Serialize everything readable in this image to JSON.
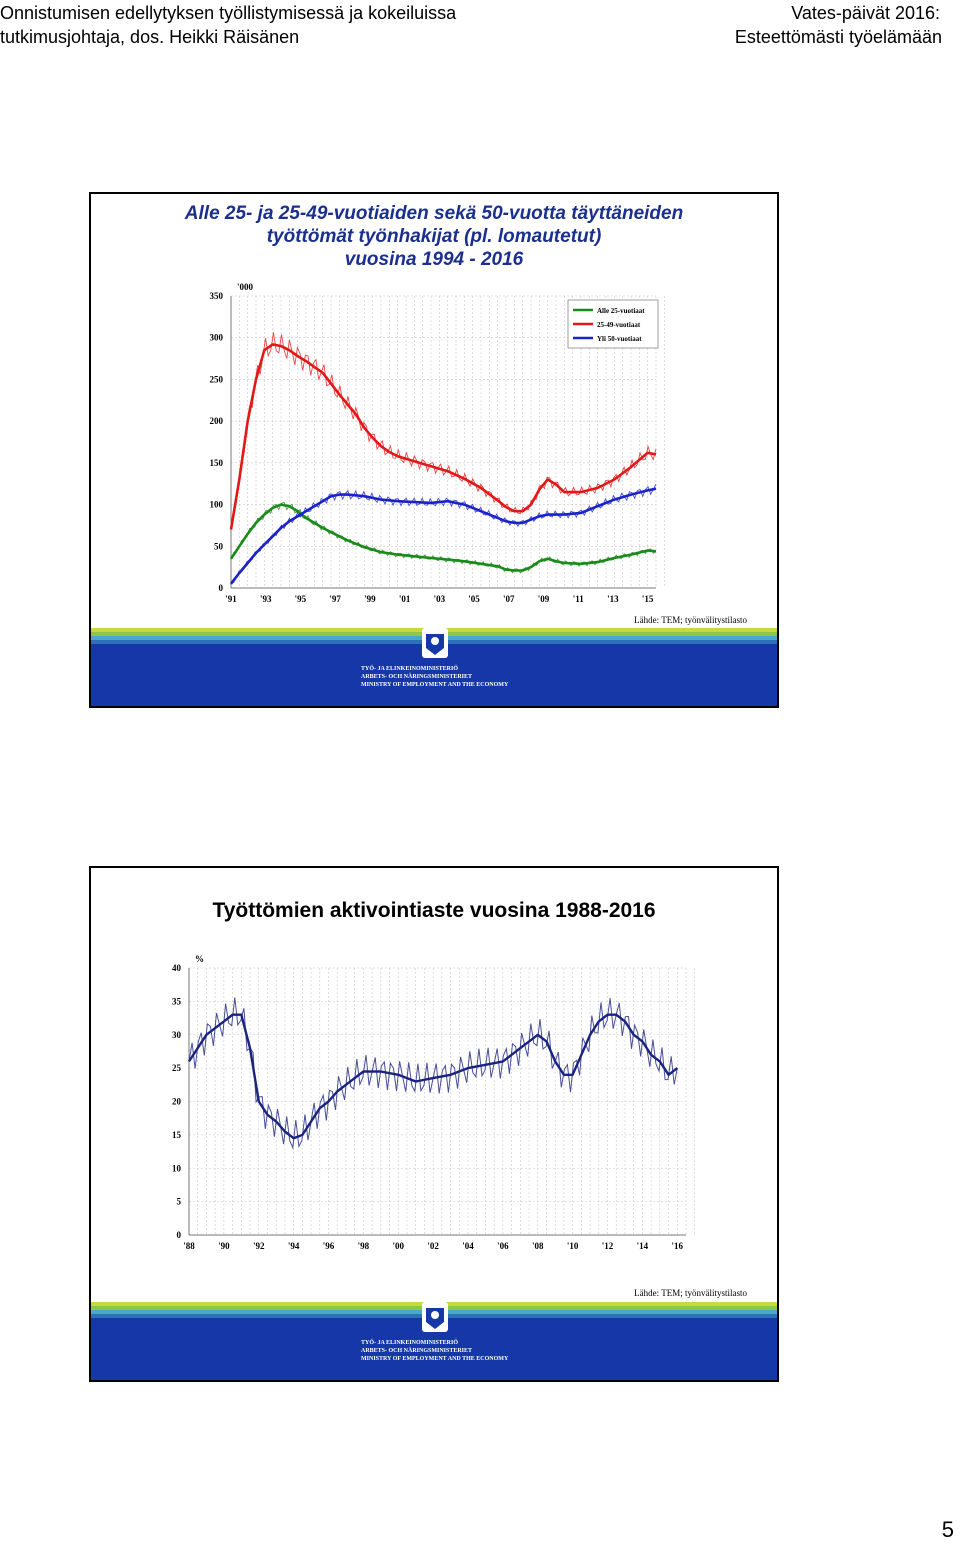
{
  "header": {
    "left_line1": "Onnistumisen edellytyksen työllistymisessä ja kokeiluissa",
    "left_line2": "tutkimusjohtaja, dos. Heikki Räisänen",
    "right_line1": "Vates-päivät 2016:",
    "right_line2": "Esteettömästi työelämään"
  },
  "slide1": {
    "title_line1": "Alle 25- ja 25-49-vuotiaiden  sekä 50-vuotta täyttäneiden",
    "title_line2": "työttömät työnhakijat (pl. lomautetut)",
    "title_line3": "vuosina 1994 - 2016",
    "source": "Lähde: TEM; työnvälitystilasto"
  },
  "slide2": {
    "title": "Työttömien aktivointiaste vuosina 1988-2016",
    "source": "Lähde: TEM; työnvälitystilasto"
  },
  "ministry": {
    "line1": "TYÖ- JA ELINKEINOMINISTERIÖ",
    "line2": "ARBETS- OCH NÄRINGSMINISTERIET",
    "line3": "MINISTRY OF EMPLOYMENT AND THE ECONOMY"
  },
  "page_number": "5",
  "colors": {
    "under25": "#1a8a1a",
    "age25_49": "#e01818",
    "over50": "#1a22c8",
    "activation": "#1a237e",
    "footer_band": "#1637a8"
  },
  "chart_data": [
    {
      "type": "line",
      "title": "",
      "unit_label": "'000",
      "x_tick_labels": [
        "'91",
        "'93",
        "'95",
        "'97",
        "'99",
        "'01",
        "'03",
        "'05",
        "'07",
        "'09",
        "'11",
        "'13",
        "'15"
      ],
      "y_ticks": [
        0,
        50,
        100,
        150,
        200,
        250,
        300,
        350
      ],
      "xlim": [
        1991,
        2016.5
      ],
      "ylim": [
        0,
        350
      ],
      "grid": true,
      "legend_position": "top-right",
      "series": [
        {
          "name": "Alle 25-vuotiaat",
          "color_key": "under25",
          "x": [
            1991.0,
            1991.5,
            1992.0,
            1992.5,
            1993.0,
            1993.5,
            1994.0,
            1994.5,
            1995.0,
            1995.5,
            1996.0,
            1996.5,
            1997.0,
            1997.5,
            1998.0,
            1998.5,
            1999.0,
            1999.5,
            2000.0,
            2001.0,
            2002.0,
            2003.0,
            2004.0,
            2005.0,
            2006.0,
            2007.0,
            2007.5,
            2008.0,
            2008.5,
            2009.0,
            2009.5,
            2010.0,
            2010.5,
            2011.0,
            2012.0,
            2013.0,
            2014.0,
            2015.0,
            2016.0,
            2016.5
          ],
          "values": [
            35,
            50,
            65,
            78,
            88,
            96,
            100,
            98,
            92,
            84,
            78,
            72,
            67,
            62,
            57,
            53,
            49,
            46,
            43,
            40,
            38,
            36,
            34,
            32,
            29,
            26,
            22,
            21,
            21,
            25,
            32,
            35,
            32,
            30,
            29,
            31,
            36,
            40,
            45,
            44
          ]
        },
        {
          "name": "25-49-vuotiaat",
          "color_key": "age25_49",
          "x": [
            1991.0,
            1991.5,
            1992.0,
            1992.5,
            1993.0,
            1993.5,
            1994.0,
            1994.5,
            1995.0,
            1995.5,
            1996.0,
            1996.5,
            1997.0,
            1997.5,
            1998.0,
            1998.5,
            1999.0,
            1999.5,
            2000.0,
            2000.5,
            2001.0,
            2002.0,
            2003.0,
            2004.0,
            2005.0,
            2006.0,
            2007.0,
            2007.5,
            2008.0,
            2008.5,
            2009.0,
            2009.5,
            2010.0,
            2010.5,
            2011.0,
            2012.0,
            2013.0,
            2014.0,
            2015.0,
            2016.0,
            2016.5
          ],
          "values": [
            70,
            130,
            200,
            250,
            285,
            292,
            290,
            285,
            278,
            272,
            265,
            258,
            245,
            232,
            220,
            208,
            192,
            180,
            170,
            163,
            158,
            152,
            146,
            140,
            131,
            120,
            105,
            97,
            92,
            92,
            100,
            118,
            130,
            124,
            115,
            115,
            120,
            130,
            145,
            162,
            160
          ]
        },
        {
          "name": "Yli 50-vuotiaat",
          "color_key": "over50",
          "x": [
            1991.0,
            1991.5,
            1992.0,
            1992.5,
            1993.0,
            1993.5,
            1994.0,
            1994.5,
            1995.0,
            1995.5,
            1996.0,
            1996.5,
            1997.0,
            1997.5,
            1998.0,
            1999.0,
            2000.0,
            2001.0,
            2002.0,
            2003.0,
            2004.0,
            2005.0,
            2006.0,
            2007.0,
            2007.5,
            2008.0,
            2008.5,
            2009.0,
            2009.5,
            2010.0,
            2011.0,
            2012.0,
            2013.0,
            2014.0,
            2015.0,
            2016.0,
            2016.5
          ],
          "values": [
            5,
            18,
            30,
            42,
            52,
            62,
            72,
            80,
            86,
            92,
            98,
            104,
            110,
            112,
            112,
            110,
            106,
            104,
            103,
            102,
            104,
            100,
            92,
            84,
            80,
            78,
            78,
            82,
            86,
            88,
            88,
            90,
            98,
            106,
            112,
            117,
            119
          ]
        }
      ]
    },
    {
      "type": "line",
      "title": "",
      "unit_label": "%",
      "x_tick_labels": [
        "'88",
        "'90",
        "'92",
        "'94",
        "'96",
        "'98",
        "'00",
        "'02",
        "'04",
        "'06",
        "'08",
        "'10",
        "'12",
        "'14",
        "'16"
      ],
      "y_ticks": [
        0,
        5,
        10,
        15,
        20,
        25,
        30,
        35,
        40
      ],
      "xlim": [
        1988,
        2016.5
      ],
      "ylim": [
        0,
        40
      ],
      "grid": true,
      "series": [
        {
          "name": "",
          "color_key": "activation",
          "x": [
            1988.0,
            1988.5,
            1989.0,
            1989.5,
            1990.0,
            1990.5,
            1991.0,
            1991.5,
            1992.0,
            1992.5,
            1993.0,
            1993.5,
            1994.0,
            1994.5,
            1995.0,
            1995.5,
            1996.0,
            1996.5,
            1997.0,
            1997.5,
            1998.0,
            1999.0,
            2000.0,
            2001.0,
            2002.0,
            2003.0,
            2004.0,
            2005.0,
            2006.0,
            2006.5,
            2007.0,
            2007.5,
            2008.0,
            2008.5,
            2009.0,
            2009.5,
            2010.0,
            2010.5,
            2011.0,
            2011.5,
            2012.0,
            2012.5,
            2013.0,
            2013.5,
            2014.0,
            2014.5,
            2015.0,
            2015.5,
            2016.0
          ],
          "values": [
            26,
            28,
            30,
            31,
            32,
            33,
            33,
            28,
            20,
            18,
            17,
            15.5,
            14.5,
            15,
            17,
            19,
            20,
            21.5,
            22.5,
            23.5,
            24.5,
            24.5,
            24,
            23,
            23.5,
            24,
            25,
            25.5,
            26,
            27,
            28,
            29,
            30,
            29,
            26,
            24,
            24,
            27,
            30,
            32,
            33,
            33,
            32,
            30,
            29,
            27,
            26,
            24,
            25
          ]
        }
      ]
    }
  ]
}
